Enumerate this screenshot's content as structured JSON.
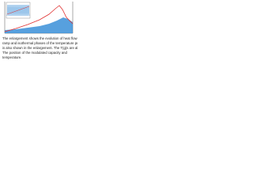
{
  "figure": {
    "caption": [
      "The enlargement shows the evolution of heat flow during the",
      "ramp and isothermal phases of the temperature program. The latter",
      "is also shown in the enlargement. The T(g)s are also shown.",
      "The position of the modulated capacity and",
      "temperature."
    ]
  }
}
